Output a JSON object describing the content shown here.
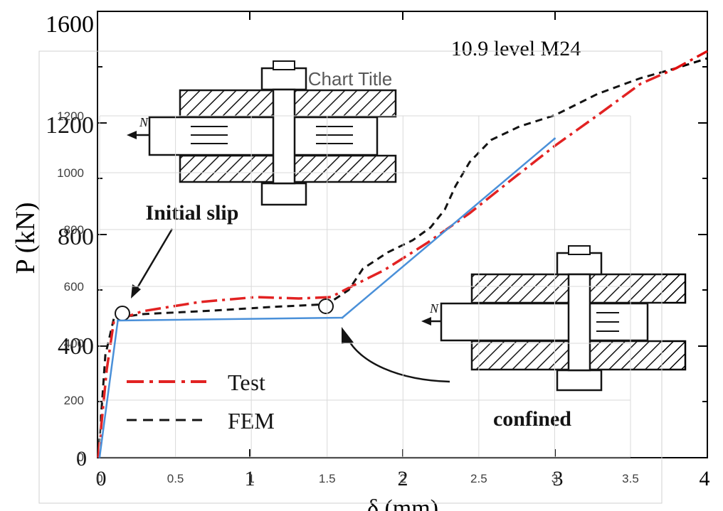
{
  "background_chart": {
    "ylabel": "P (kN)",
    "xlabel": "δ (mm)",
    "x_ticks": [
      "0",
      "1",
      "2",
      "3",
      "4"
    ],
    "y_ticks": [
      "0",
      "400",
      "800",
      "1200",
      "1600"
    ],
    "annotation": "10.9 level M24",
    "initial_slip_label": "Initial slip",
    "confined_label": "confined",
    "force_label": "N",
    "legend": [
      {
        "label": "Test",
        "style": "dash-dot",
        "color": "#e01010"
      },
      {
        "label": "FEM",
        "style": "dashed",
        "color": "#000000"
      }
    ]
  },
  "chart_data": {
    "type": "line",
    "title": "Chart Title",
    "xlabel": "",
    "ylabel": "",
    "x_ticks": [
      "0",
      "0.5",
      "1",
      "1.5",
      "2",
      "2.5",
      "3",
      "3.5"
    ],
    "y_ticks": [
      "0",
      "200",
      "400",
      "600",
      "800",
      "1000",
      "1200"
    ],
    "xlim": [
      0,
      3.5
    ],
    "ylim": [
      0,
      1200
    ],
    "grid": true,
    "series": [
      {
        "color": "#4a90d9",
        "x": [
          0,
          0.12,
          1.6,
          3.0
        ],
        "y": [
          0,
          480,
          490,
          1120
        ]
      }
    ]
  },
  "colors": {
    "test": "#e01010",
    "fem": "#000000",
    "overlay_line": "#4a90d9",
    "grid": "#d9d9d9"
  }
}
